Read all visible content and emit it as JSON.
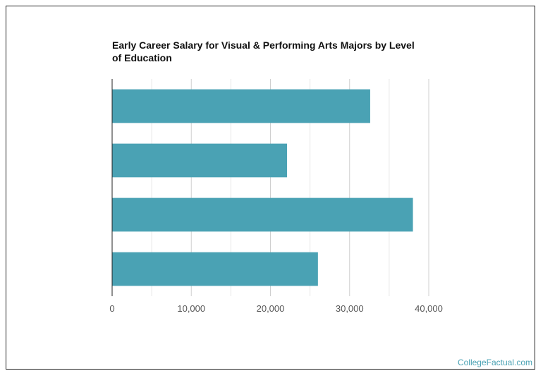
{
  "chart_data": {
    "type": "bar",
    "orientation": "horizontal",
    "title": "Early Career Salary for Visual & Performing Arts Majors by Level of Education",
    "xlabel": "",
    "ylabel": "",
    "categories": [
      "",
      "",
      "",
      ""
    ],
    "values": [
      32600,
      22100,
      38000,
      26000
    ],
    "xlim": [
      0,
      40000
    ],
    "x_ticks": [
      0,
      10000,
      20000,
      30000,
      40000
    ],
    "x_tick_labels": [
      "0",
      "10,000",
      "20,000",
      "30,000",
      "40,000"
    ],
    "grid": true,
    "legend": "none",
    "bar_color": "#4aa2b4"
  },
  "brand": {
    "text": "CollegeFactual.com"
  }
}
